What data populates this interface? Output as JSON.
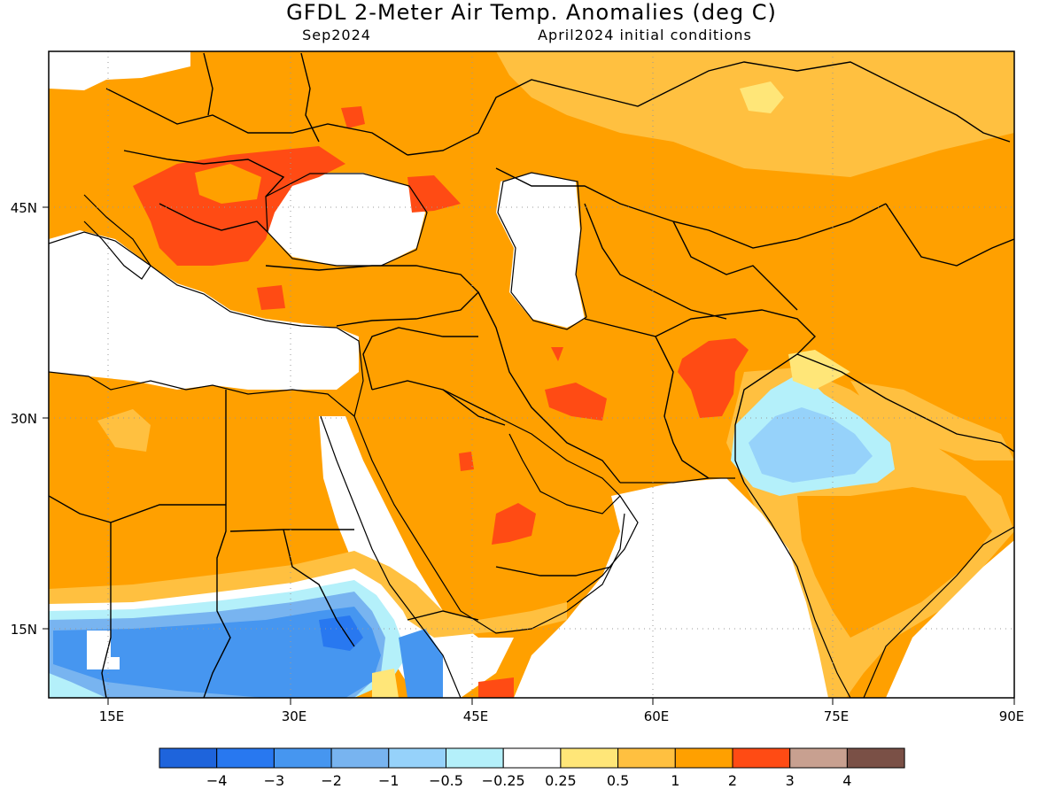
{
  "header": {
    "title": "GFDL 2-Meter Air Temp. Anomalies (deg C)",
    "valid_month": "Sep2024",
    "init_conditions": "April2024 initial conditions"
  },
  "axes": {
    "lon_ticks": [
      "15E",
      "30E",
      "45E",
      "60E",
      "75E",
      "90E"
    ],
    "lat_ticks": [
      "45N",
      "30N",
      "15N"
    ]
  },
  "legend": {
    "labels": [
      "-4",
      "-3",
      "-2",
      "-1",
      "-0.5",
      "-0.25",
      "0.25",
      "0.5",
      "1",
      "2",
      "3",
      "4"
    ],
    "colors": [
      "#1e64dc",
      "#2878f0",
      "#4696f0",
      "#78b4f0",
      "#96d2fa",
      "#b4f0fa",
      "#ffffff",
      "#ffe678",
      "#ffc040",
      "#ffa000",
      "#ff4b14",
      "#c8a090",
      "#7a5046"
    ]
  },
  "map": {
    "domain": {
      "lon_min": 10,
      "lon_max": 90,
      "lat_min": 10,
      "lat_max": 56
    },
    "colors": {
      "warm_base": "#ffa000",
      "warm_light": "#ffc040",
      "warm_pale": "#ffe678",
      "hot": "#ff4b14",
      "neutral": "#ffffff",
      "cool_1": "#b4f0fa",
      "cool_2": "#96d2fa",
      "cool_3": "#78b4f0",
      "cool_4": "#4696f0",
      "cool_5": "#2878f0"
    }
  }
}
